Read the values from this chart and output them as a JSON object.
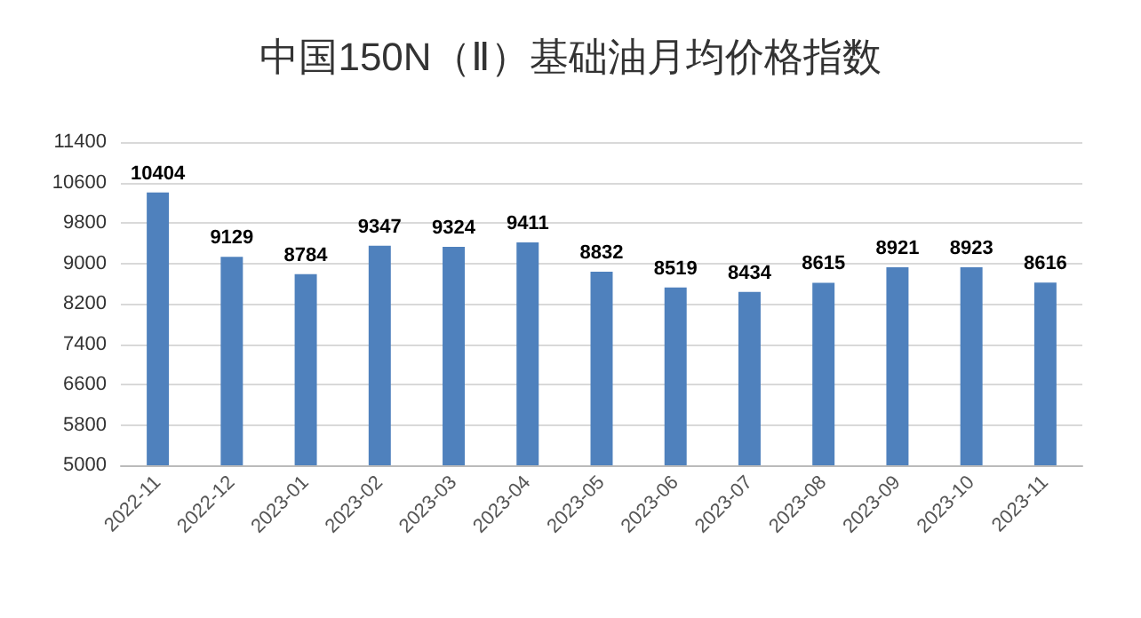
{
  "chart_data": {
    "type": "bar",
    "title": "中国150N（Ⅱ）基础油月均价格指数",
    "categories": [
      "2022-11",
      "2022-12",
      "2023-01",
      "2023-02",
      "2023-03",
      "2023-04",
      "2023-05",
      "2023-06",
      "2023-07",
      "2023-08",
      "2023-09",
      "2023-10",
      "2023-11"
    ],
    "values": [
      10404,
      9129,
      8784,
      9347,
      9324,
      9411,
      8832,
      8519,
      8434,
      8615,
      8921,
      8923,
      8616
    ],
    "color": "#4f81bd",
    "ylim": [
      5000,
      11400
    ],
    "yticks": [
      5000,
      5800,
      6600,
      7400,
      8200,
      9000,
      9800,
      10600,
      11400
    ],
    "grid": "y",
    "data_labels": true
  }
}
